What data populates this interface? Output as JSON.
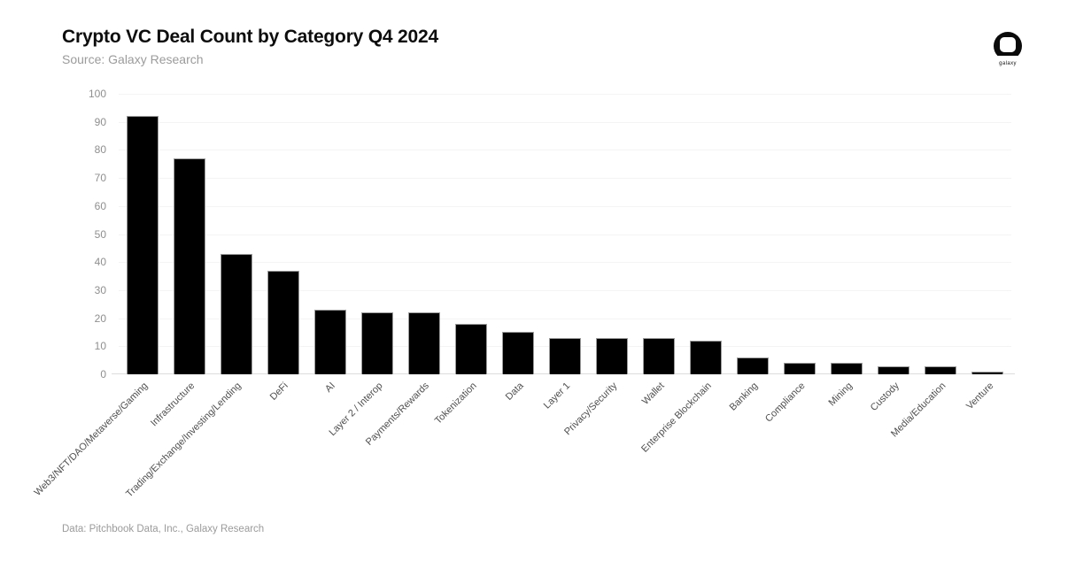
{
  "header": {
    "title": "Crypto VC Deal Count by Category Q4 2024",
    "source": "Source: Galaxy Research",
    "logo_label": "galaxy"
  },
  "footer": {
    "credit": "Data: Pitchbook Data, Inc., Galaxy Research"
  },
  "chart_data": {
    "type": "bar",
    "title": "Crypto VC Deal Count by Category Q4 2024",
    "subtitle": "Source: Galaxy Research",
    "categories": [
      "Web3/NFT/DAO/Metaverse/Gaming",
      "Infrastructure",
      "Trading/Exchange/Investing/Lending",
      "DeFi",
      "AI",
      "Layer 2 / Interop",
      "Payments/Rewards",
      "Tokenization",
      "Data",
      "Layer 1",
      "Privacy/Security",
      "Wallet",
      "Enterprise Blockchain",
      "Banking",
      "Compliance",
      "Mining",
      "Custody",
      "Media/Education",
      "Venture"
    ],
    "values": [
      92,
      77,
      43,
      37,
      23,
      22,
      22,
      18,
      15,
      13,
      13,
      13,
      12,
      6,
      4,
      4,
      3,
      3,
      1
    ],
    "xlabel": "",
    "ylabel": "",
    "ylim": [
      0,
      100
    ],
    "yticks": [
      0,
      10,
      20,
      30,
      40,
      50,
      60,
      70,
      80,
      90,
      100
    ],
    "grid": "horizontal-faint",
    "legend_position": "none",
    "x_label_rotation_deg": 45
  },
  "colors": {
    "bar_fill": "#000000",
    "bar_edge": "#9c9c9c",
    "background": "#ffffff",
    "title_text": "#0d0d0d",
    "muted_text": "#9b9b9b",
    "axis_tick_text": "#8f8f8f",
    "category_text": "#4f4f4f",
    "gridline": "#f4f4f4",
    "axis_line": "#dcdcdc"
  }
}
